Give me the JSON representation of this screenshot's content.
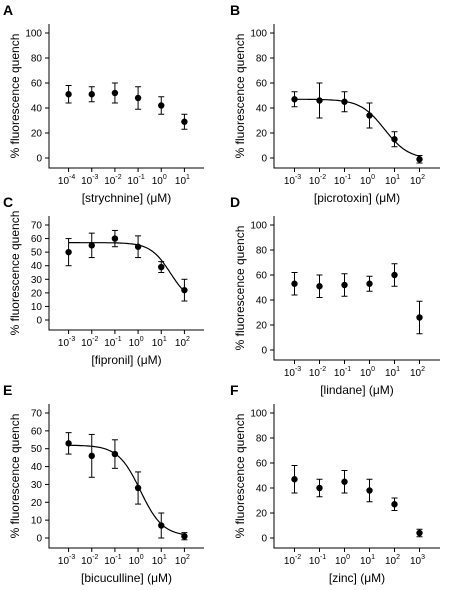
{
  "chart_data": [
    {
      "panel": "A",
      "type": "scatter",
      "xlabel": "[strychnine] (μM)",
      "ylabel": "% fluorescence quench",
      "xscale": "log",
      "xticks": [
        -4,
        -3,
        -2,
        -1,
        0,
        1
      ],
      "xlim_log10": [
        -4.5,
        1.5
      ],
      "ylim": [
        0,
        100
      ],
      "yticks": [
        0,
        20,
        40,
        60,
        80,
        100
      ],
      "fit": false,
      "points": [
        {
          "x": 0.0001,
          "y": 51,
          "err": 7
        },
        {
          "x": 0.001,
          "y": 51,
          "err": 6
        },
        {
          "x": 0.01,
          "y": 52,
          "err": 8
        },
        {
          "x": 0.1,
          "y": 48,
          "err": 9
        },
        {
          "x": 1,
          "y": 42,
          "err": 7
        },
        {
          "x": 10,
          "y": 29,
          "err": 6
        }
      ]
    },
    {
      "panel": "B",
      "type": "scatter",
      "xlabel": "[picrotoxin] (μM)",
      "ylabel": "% fluorescence quench",
      "xscale": "log",
      "xticks": [
        -3,
        -2,
        -1,
        0,
        1,
        2
      ],
      "xlim_log10": [
        -3.5,
        2.5
      ],
      "ylim": [
        0,
        100
      ],
      "yticks": [
        0,
        20,
        40,
        60,
        80,
        100
      ],
      "fit": {
        "top": 47,
        "bottom": -1,
        "logEC50": 0.6,
        "hill": 0.9
      },
      "points": [
        {
          "x": 0.001,
          "y": 47,
          "err": 6
        },
        {
          "x": 0.01,
          "y": 46,
          "err": 14
        },
        {
          "x": 0.1,
          "y": 45,
          "err": 8
        },
        {
          "x": 1,
          "y": 34,
          "err": 10
        },
        {
          "x": 10,
          "y": 15,
          "err": 6
        },
        {
          "x": 100,
          "y": -1,
          "err": 3
        }
      ]
    },
    {
      "panel": "C",
      "type": "scatter",
      "xlabel": "[fipronil] (μM)",
      "ylabel": "% fluorescence quench",
      "xscale": "log",
      "xticks": [
        -3,
        -2,
        -1,
        0,
        1,
        2
      ],
      "xlim_log10": [
        -3.5,
        2.5
      ],
      "ylim": [
        0,
        70
      ],
      "yticks": [
        0,
        10,
        20,
        30,
        40,
        50,
        60,
        70
      ],
      "fit": {
        "top": 57,
        "bottom": 12,
        "logEC50": 1.4,
        "hill": 1.0
      },
      "points": [
        {
          "x": 0.001,
          "y": 50,
          "err": 10
        },
        {
          "x": 0.01,
          "y": 55,
          "err": 9
        },
        {
          "x": 0.1,
          "y": 60,
          "err": 6
        },
        {
          "x": 1,
          "y": 54,
          "err": 8
        },
        {
          "x": 10,
          "y": 39,
          "err": 4
        },
        {
          "x": 100,
          "y": 22,
          "err": 8
        }
      ]
    },
    {
      "panel": "D",
      "type": "scatter",
      "xlabel": "[lindane] (μM)",
      "ylabel": "% fluorescence quench",
      "xscale": "log",
      "xticks": [
        -3,
        -2,
        -1,
        0,
        1,
        2
      ],
      "xlim_log10": [
        -3.5,
        2.5
      ],
      "ylim": [
        0,
        100
      ],
      "yticks": [
        0,
        20,
        40,
        60,
        80,
        100
      ],
      "fit": false,
      "points": [
        {
          "x": 0.001,
          "y": 53,
          "err": 9
        },
        {
          "x": 0.01,
          "y": 51,
          "err": 9
        },
        {
          "x": 0.1,
          "y": 52,
          "err": 9
        },
        {
          "x": 1,
          "y": 53,
          "err": 6
        },
        {
          "x": 10,
          "y": 60,
          "err": 9
        },
        {
          "x": 100,
          "y": 26,
          "err": 13
        }
      ]
    },
    {
      "panel": "E",
      "type": "scatter",
      "xlabel": "[bicuculline] (μM)",
      "ylabel": "% fluorescence quench",
      "xscale": "log",
      "xticks": [
        -3,
        -2,
        -1,
        0,
        1,
        2
      ],
      "xlim_log10": [
        -3.5,
        2.5
      ],
      "ylim": [
        0,
        70
      ],
      "yticks": [
        0,
        10,
        20,
        30,
        40,
        50,
        60,
        70
      ],
      "fit": {
        "top": 52,
        "bottom": 1,
        "logEC50": 0.1,
        "hill": 0.9
      },
      "points": [
        {
          "x": 0.001,
          "y": 53,
          "err": 6
        },
        {
          "x": 0.01,
          "y": 46,
          "err": 12
        },
        {
          "x": 0.1,
          "y": 47,
          "err": 8
        },
        {
          "x": 1,
          "y": 28,
          "err": 9
        },
        {
          "x": 10,
          "y": 7,
          "err": 7
        },
        {
          "x": 100,
          "y": 1,
          "err": 2
        }
      ]
    },
    {
      "panel": "F",
      "type": "scatter",
      "xlabel": "[zinc] (μM)",
      "ylabel": "% fluorescence quench",
      "xscale": "log",
      "xticks": [
        -2,
        -1,
        0,
        1,
        2,
        3
      ],
      "xlim_log10": [
        -2.5,
        3.5
      ],
      "ylim": [
        0,
        100
      ],
      "yticks": [
        0,
        20,
        40,
        60,
        80,
        100
      ],
      "fit": false,
      "points": [
        {
          "x": 0.01,
          "y": 47,
          "err": 11
        },
        {
          "x": 0.1,
          "y": 40,
          "err": 7
        },
        {
          "x": 1,
          "y": 45,
          "err": 9
        },
        {
          "x": 10,
          "y": 38,
          "err": 9
        },
        {
          "x": 100,
          "y": 27,
          "err": 5
        },
        {
          "x": 1000,
          "y": 4,
          "err": 3
        }
      ]
    }
  ]
}
